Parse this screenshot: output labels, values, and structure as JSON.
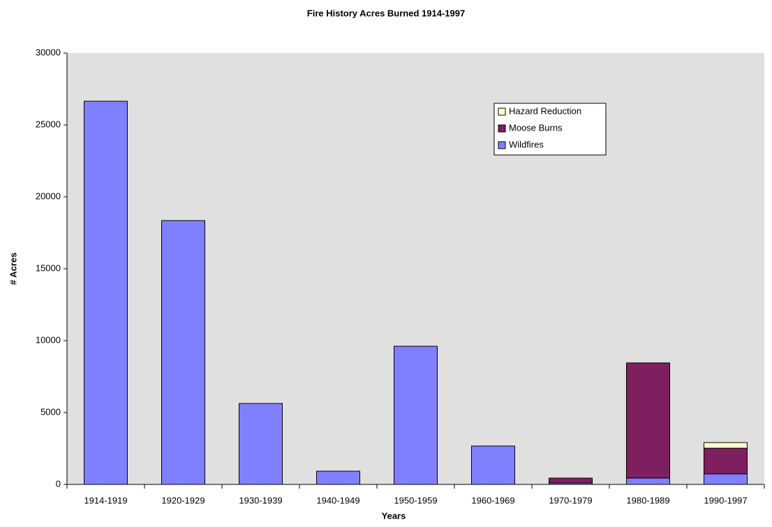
{
  "chart_data": {
    "type": "stacked_bar",
    "title": "Fire History Acres Burned 1914-1997",
    "x_label": "Years",
    "y_label": "# Acres",
    "categories": [
      "1914-1919",
      "1920-1929",
      "1930-1939",
      "1940-1949",
      "1950-1959",
      "1960-1969",
      "1970-1979",
      "1980-1989",
      "1990-1997"
    ],
    "series": [
      {
        "name": "Wildfires",
        "color": "#8080ff",
        "values": [
          26650,
          18350,
          5630,
          920,
          9610,
          2670,
          100,
          440,
          730
        ]
      },
      {
        "name": "Moose Burns",
        "color": "#7f1f5f",
        "values": [
          0,
          0,
          0,
          0,
          0,
          0,
          340,
          8010,
          1790
        ]
      },
      {
        "name": "Hazard Reduction",
        "color": "#ffffcc",
        "values": [
          0,
          0,
          0,
          0,
          0,
          0,
          0,
          0,
          390
        ]
      }
    ],
    "ylim": [
      0,
      30000
    ],
    "yticks": [
      0,
      5000,
      10000,
      15000,
      20000,
      25000,
      30000
    ],
    "legend": "upper-right"
  }
}
